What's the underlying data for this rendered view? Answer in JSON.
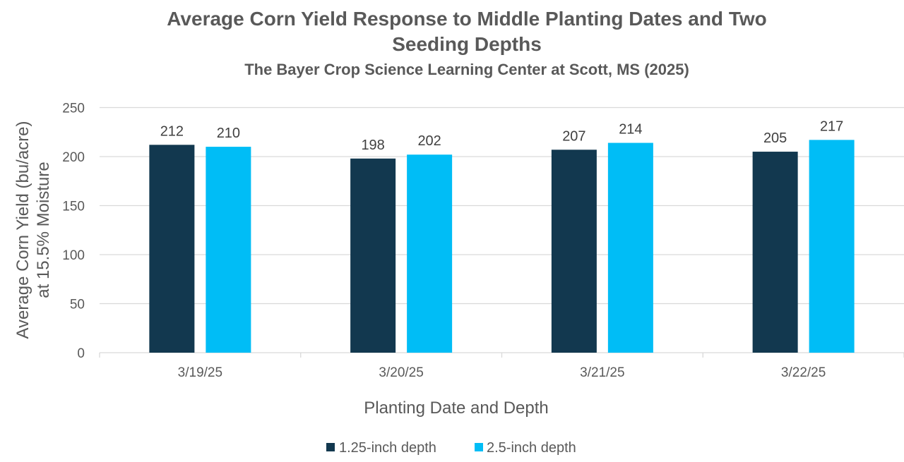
{
  "chart_data": {
    "type": "bar",
    "title": "Average Corn Yield Response to Middle Planting Dates and Two Seeding Depths",
    "title_lines": [
      "Average Corn Yield Response to Middle Planting Dates and Two",
      "Seeding Depths"
    ],
    "subtitle": "The Bayer Crop Science Learning Center at Scott, MS (2025)",
    "xlabel": "Planting Date and Depth",
    "ylabel": "Average Corn Yield (bu/acre) at 15.5% Moisture",
    "ylabel_lines": [
      "Average Corn Yield (bu/acre)",
      "at 15.5% Moisture"
    ],
    "categories": [
      "3/19/25",
      "3/20/25",
      "3/21/25",
      "3/22/25"
    ],
    "series": [
      {
        "name": "1.25-inch depth",
        "values": [
          212,
          198,
          207,
          205
        ],
        "color": "#12384f"
      },
      {
        "name": "2.5-inch depth",
        "values": [
          210,
          202,
          214,
          217
        ],
        "color": "#00bdf6"
      }
    ],
    "ylim": [
      0,
      250
    ],
    "yticks": [
      0,
      50,
      100,
      150,
      200,
      250
    ],
    "grid": true,
    "legend": "bottom",
    "data_labels": true
  }
}
